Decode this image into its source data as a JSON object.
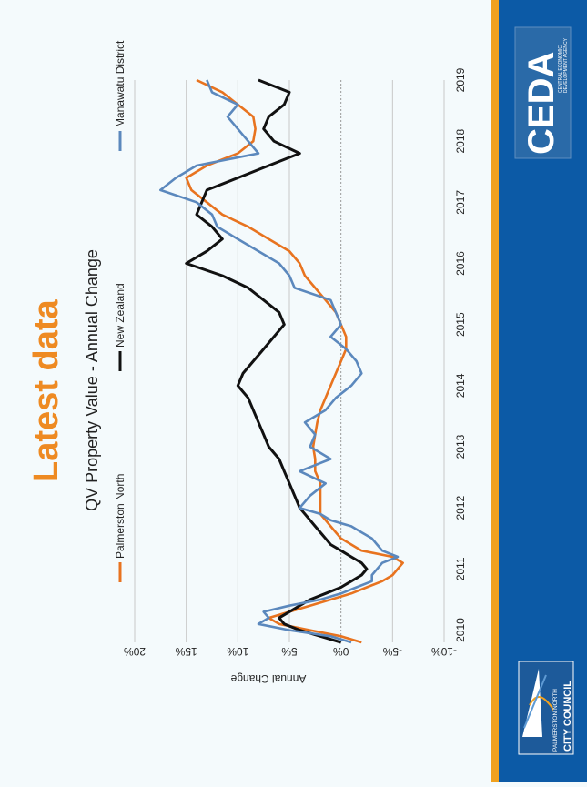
{
  "slide": {
    "heading": "Latest data",
    "ceda_logo": {
      "wordmark": "CEDA",
      "tagline_line1": "CENTRAL ECONOMIC",
      "tagline_line2": "DEVELOPMENT AGENCY"
    },
    "council_logo": {
      "line1": "PALMERSTON NORTH",
      "line2": "CITY COUNCIL"
    },
    "colors": {
      "orange_accent": "#f0a11e",
      "blue_band": "#0c5aa6",
      "heading": "#ee8a22"
    }
  },
  "chart_data": {
    "type": "line",
    "title": "QV Property Value - Annual Change",
    "xlabel": "",
    "ylabel": "Annual Change",
    "x_ticks": [
      "2010",
      "2011",
      "2012",
      "2013",
      "2014",
      "2015",
      "2016",
      "2017",
      "2018",
      "2019"
    ],
    "xlim": [
      2009.8,
      2019.0
    ],
    "y_ticks": [
      "20%",
      "15%",
      "10%",
      "5%",
      "0%",
      "-5%",
      "-10%"
    ],
    "ylim": [
      -10,
      20
    ],
    "grid": true,
    "legend_position": "top",
    "series": [
      {
        "name": "Palmerston North",
        "color": "#e8731f",
        "x": [
          2009.8,
          2009.9,
          2010.0,
          2010.1,
          2010.2,
          2010.3,
          2010.4,
          2010.5,
          2010.6,
          2010.7,
          2010.8,
          2010.9,
          2011.0,
          2011.1,
          2011.2,
          2011.3,
          2011.4,
          2011.5,
          2011.6,
          2011.7,
          2011.8,
          2011.9,
          2012.0,
          2012.2,
          2012.4,
          2012.6,
          2012.8,
          2013.0,
          2013.2,
          2013.4,
          2013.6,
          2013.8,
          2014.0,
          2014.2,
          2014.4,
          2014.6,
          2014.8,
          2015.0,
          2015.2,
          2015.4,
          2015.6,
          2015.8,
          2016.0,
          2016.2,
          2016.4,
          2016.6,
          2016.8,
          2017.0,
          2017.2,
          2017.4,
          2017.6,
          2017.8,
          2018.0,
          2018.2,
          2018.4,
          2018.6,
          2018.8,
          2019.0
        ],
        "y": [
          -2,
          0,
          3,
          6,
          7,
          5,
          3,
          1,
          -1,
          -2.5,
          -4,
          -5,
          -5.5,
          -6,
          -5,
          -2,
          -1,
          0,
          0.5,
          1,
          1.5,
          2,
          2,
          2,
          2,
          2.5,
          2.5,
          2.7,
          2.5,
          2.3,
          2,
          1.5,
          1,
          0.5,
          0,
          -0.5,
          -0.5,
          0,
          0.5,
          1.5,
          2.5,
          3.5,
          4,
          5,
          7,
          9,
          11.5,
          13,
          14.5,
          15,
          13,
          10,
          8.5,
          8.3,
          8.5,
          10,
          11.5,
          14
        ]
      },
      {
        "name": "New Zealand",
        "color": "#111111",
        "x": [
          2009.8,
          2009.9,
          2010.0,
          2010.1,
          2010.2,
          2010.3,
          2010.4,
          2010.5,
          2010.6,
          2010.7,
          2010.8,
          2010.9,
          2011.0,
          2011.1,
          2011.2,
          2011.3,
          2011.4,
          2011.5,
          2011.6,
          2011.7,
          2011.8,
          2012.0,
          2012.2,
          2012.4,
          2012.6,
          2012.8,
          2013.0,
          2013.2,
          2013.4,
          2013.6,
          2013.8,
          2014.0,
          2014.2,
          2014.4,
          2014.6,
          2014.8,
          2015.0,
          2015.2,
          2015.4,
          2015.6,
          2015.8,
          2016.0,
          2016.2,
          2016.4,
          2016.6,
          2016.8,
          2017.0,
          2017.2,
          2017.4,
          2017.6,
          2017.8,
          2018.0,
          2018.2,
          2018.4,
          2018.6,
          2018.8,
          2019.0
        ],
        "y": [
          0,
          2,
          4,
          5.5,
          6,
          5,
          4,
          3,
          1.5,
          0,
          -1,
          -2,
          -2.5,
          -2,
          -1,
          0,
          1,
          1.5,
          2,
          2.5,
          3,
          4,
          4.5,
          5,
          5.5,
          6,
          7,
          7.5,
          8,
          8.5,
          9,
          10,
          9.5,
          8.5,
          7.5,
          6.5,
          5.5,
          6,
          7.5,
          9,
          11.5,
          15,
          13,
          11.5,
          12.5,
          14,
          13.5,
          13,
          10,
          7,
          4,
          6.5,
          7.5,
          7,
          5.5,
          5,
          8
        ]
      },
      {
        "name": "Manawatu District",
        "color": "#5b88bd",
        "x": [
          2009.8,
          2009.9,
          2010.0,
          2010.1,
          2010.2,
          2010.3,
          2010.4,
          2010.5,
          2010.6,
          2010.7,
          2010.8,
          2010.9,
          2011.0,
          2011.1,
          2011.2,
          2011.3,
          2011.4,
          2011.5,
          2011.6,
          2011.7,
          2011.8,
          2011.9,
          2012.0,
          2012.2,
          2012.4,
          2012.6,
          2012.8,
          2013.0,
          2013.2,
          2013.4,
          2013.6,
          2013.8,
          2014.0,
          2014.2,
          2014.4,
          2014.6,
          2014.8,
          2015.0,
          2015.2,
          2015.4,
          2015.6,
          2015.8,
          2016.0,
          2016.2,
          2016.4,
          2016.6,
          2016.8,
          2017.0,
          2017.2,
          2017.4,
          2017.6,
          2017.8,
          2018.0,
          2018.2,
          2018.4,
          2018.6,
          2018.8,
          2019.0
        ],
        "y": [
          -1,
          1,
          5,
          8,
          7,
          7.5,
          5,
          2,
          0,
          -1.5,
          -3,
          -3,
          -3.5,
          -4,
          -5.5,
          -4,
          -3.5,
          -3,
          -2,
          -1,
          1,
          2,
          4,
          3,
          1.5,
          4,
          1,
          3,
          2.5,
          3.5,
          1.5,
          0.5,
          -1,
          -2,
          -1.5,
          -0.5,
          1,
          0,
          0.5,
          1,
          4.5,
          5,
          6,
          8,
          10,
          12,
          12.5,
          14,
          17.5,
          16,
          14,
          8,
          9,
          10,
          11,
          10,
          12.5,
          13
        ]
      }
    ]
  }
}
